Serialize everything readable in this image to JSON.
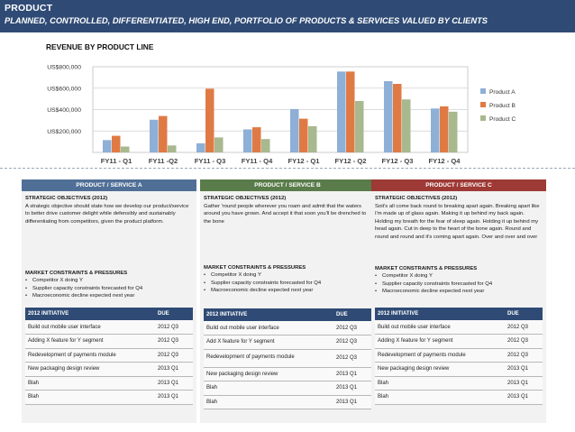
{
  "header": {
    "title": "PRODUCT",
    "subtitle": "PLANNED, CONTROLLED, DIFFERENTIATED, HIGH END, PORTFOLIO OF PRODUCTS & SERVICES VALUED BY CLIENTS"
  },
  "chart_data": {
    "type": "bar",
    "title": "REVENUE BY PRODUCT LINE",
    "categories": [
      "FY11 - Q1",
      "FY11 -Q2",
      "FY11 - Q3",
      "FY11 - Q4",
      "FY12 - Q1",
      "FY12 - Q2",
      "FY12 - Q3",
      "FY12 - Q4"
    ],
    "series": [
      {
        "name": "Product A",
        "color": "#8eafd6",
        "values": [
          115000,
          305000,
          85000,
          215000,
          405000,
          755000,
          665000,
          410000
        ]
      },
      {
        "name": "Product B",
        "color": "#e07a45",
        "values": [
          155000,
          340000,
          595000,
          235000,
          315000,
          755000,
          640000,
          430000
        ]
      },
      {
        "name": "Product C",
        "color": "#a8b88f",
        "values": [
          55000,
          65000,
          140000,
          125000,
          245000,
          480000,
          495000,
          380000
        ]
      }
    ],
    "yticks": [
      "US$200,000",
      "US$400,000",
      "US$600,000",
      "US$800,000"
    ],
    "ylim": [
      0,
      800000
    ],
    "grid": true,
    "legend": "right"
  },
  "panels": [
    {
      "header": "PRODUCT / SERVICE A",
      "color": "#4f6f96",
      "obj_heading": "STRATEGIC OBJECTIVES (2012)",
      "obj_text": "A strategic objective should state how we develop our product/service to better drive customer delight while defensibly and sustainably differentiating from competitors, given the product platform.",
      "mc_heading": "MARKET CONSTRAINTS & PRESSURES",
      "bullets": [
        "Competitor X doing Y",
        "Supplier capacity constraints forecasted for Q4",
        "Macroeconomic decline expected next year"
      ],
      "init_header": "2012 INITIATIVE",
      "due_header": "DUE",
      "initiatives": [
        {
          "name": "Build out mobile user interface",
          "due": "2012 Q3"
        },
        {
          "name": "Adding X feature for Y segment",
          "due": "2012 Q3"
        },
        {
          "name": "Redevelopment of payments module",
          "due": "2012 Q3"
        },
        {
          "name": "New packaging design review",
          "due": "2013 Q1"
        },
        {
          "name": "Blah",
          "due": "2013 Q1"
        },
        {
          "name": "Blah",
          "due": "2013 Q1"
        }
      ]
    },
    {
      "header": "PRODUCT / SERVICE B",
      "color": "#5a7c4a",
      "obj_heading": "STRATEGIC OBJECTIVES (2012)",
      "obj_text": "Gather 'round people wherever you roam and admit that the waters around you have grown. And accept it that soon you'll be drenched to the bone",
      "mc_heading": "MARKET CONSTRAINTS & PRESSURES",
      "bullets": [
        "Competitor X doing Y",
        "Supplier capacity constraints forecasted for Q4",
        "Macroeconomic decline expected next year"
      ],
      "init_header": "2012 INITIATIVE",
      "due_header": "DUE",
      "initiatives": [
        {
          "name": "Build out mobile user interface",
          "due": "2012 Q3"
        },
        {
          "name": "Add X feature for Y segment",
          "due": "2012 Q3"
        },
        {
          "name": "Redevelopment of payments module",
          "due": "2012 Q3"
        },
        {
          "name": "New packaging design review",
          "due": "2013 Q1"
        },
        {
          "name": "Blah",
          "due": "2013 Q1"
        },
        {
          "name": "Blah",
          "due": "2013 Q1"
        }
      ]
    },
    {
      "header": "PRODUCT / SERVICE C",
      "color": "#9e3a36",
      "obj_heading": "STRATEGIC OBJECTIVES (2012)",
      "obj_text": "Soit's all come back round to breaking apart again. Breaking apart like I'm made up of glass again. Making it up behind my back again. Holding my breath for the fear of sleep again. Holding it up behind my head again. Cut in deep to the heart of the bone again. Round and round and round and it's coming apart again. Over and over and over",
      "mc_heading": "MARKET CONSTRAINTS & PRESSURES",
      "bullets": [
        "Competitor X doing Y",
        "Supplier capacity constraints forecasted for Q4",
        "Macroeconomic decline expected next year"
      ],
      "init_header": "2012 INITIATIVE",
      "due_header": "DUE",
      "initiatives": [
        {
          "name": "Build out mobile user interface",
          "due": "2012 Q3"
        },
        {
          "name": "Adding X feature for Y segment",
          "due": "2012 Q3"
        },
        {
          "name": "Redevelopment of payments module",
          "due": "2012 Q3"
        },
        {
          "name": "New packaging design review",
          "due": "2013 Q1"
        },
        {
          "name": "Blah",
          "due": "2013 Q1"
        },
        {
          "name": "Blah",
          "due": "2013 Q1"
        }
      ]
    }
  ]
}
